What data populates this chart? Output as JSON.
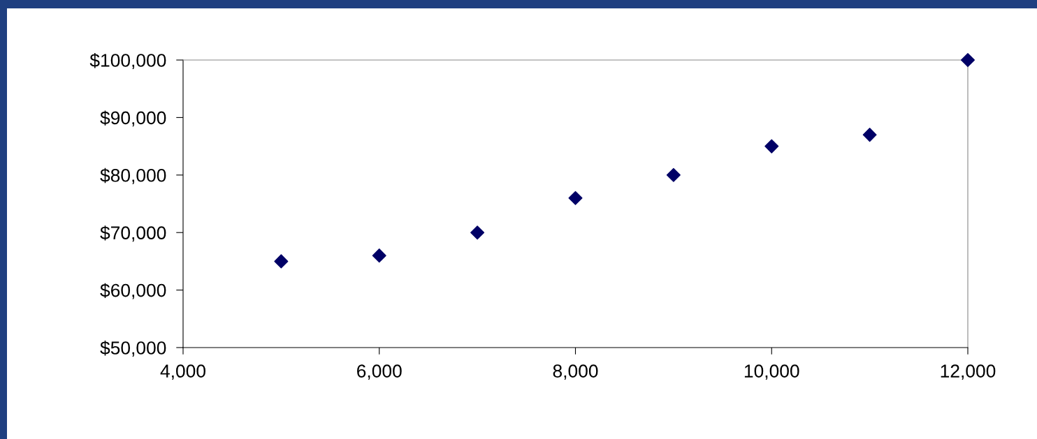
{
  "chart_data": {
    "type": "scatter",
    "x": [
      5000,
      6000,
      7000,
      8000,
      9000,
      10000,
      11000,
      12000
    ],
    "series": [
      {
        "color": "#000066",
        "values": [
          65000,
          66000,
          70000,
          76000,
          80000,
          85000,
          87000,
          100000
        ]
      }
    ],
    "xlim": [
      4000,
      12000
    ],
    "xticks": [
      {
        "value": 4000,
        "label": "4,000"
      },
      {
        "value": 6000,
        "label": "6,000"
      },
      {
        "value": 8000,
        "label": "8,000"
      },
      {
        "value": 10000,
        "label": "10,000"
      },
      {
        "value": 12000,
        "label": "12,000"
      }
    ],
    "ylim": [
      50000,
      100000
    ],
    "yticks": [
      {
        "value": 50000,
        "label": "$50,000"
      },
      {
        "value": 60000,
        "label": "$60,000"
      },
      {
        "value": 70000,
        "label": "$70,000"
      },
      {
        "value": 80000,
        "label": "$80,000"
      },
      {
        "value": 90000,
        "label": "$90,000"
      },
      {
        "value": 100000,
        "label": "$100,000"
      }
    ],
    "grid": false,
    "marker": "diamond"
  }
}
